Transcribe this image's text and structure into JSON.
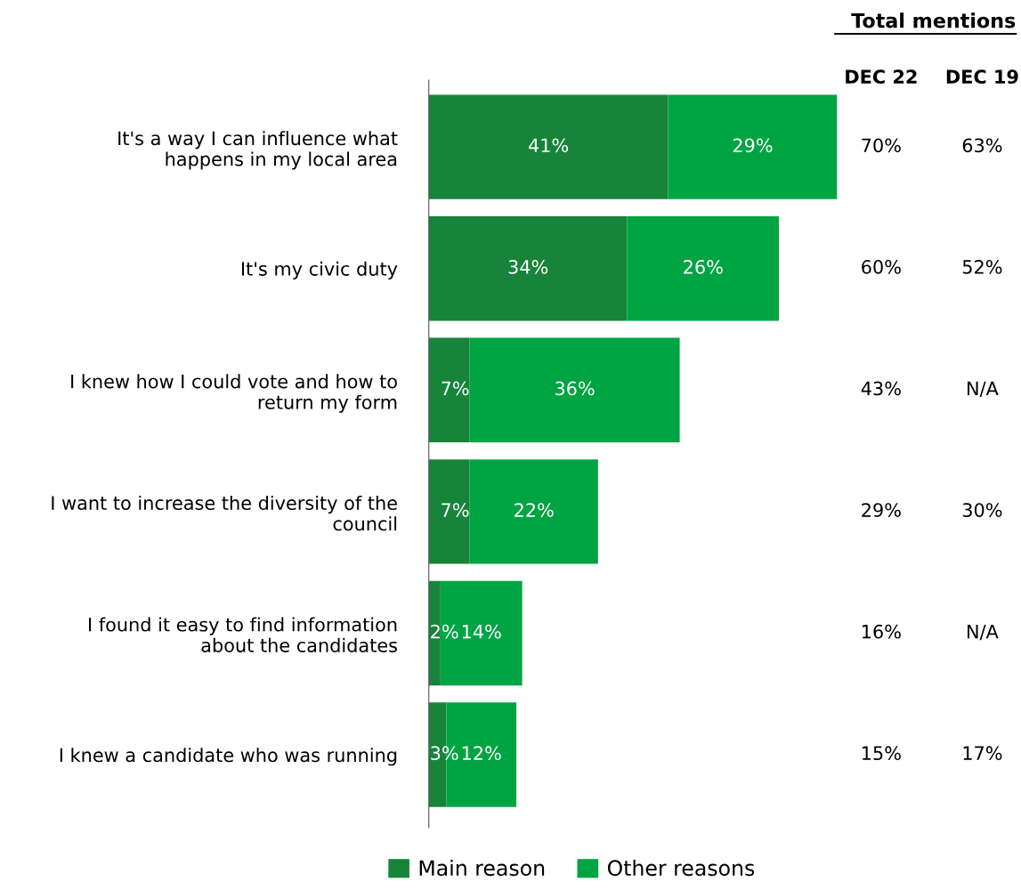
{
  "chart_data": {
    "type": "bar",
    "orientation": "horizontal",
    "stacked": true,
    "categories": [
      "It's a way I can influence what\nhappens in my local area",
      "It's my civic duty",
      "I knew how I could vote and how to\nreturn my form",
      "I want to increase the diversity of the\ncouncil",
      "I found it easy to find information\nabout the candidates",
      "I knew a candidate who was running"
    ],
    "series": [
      {
        "name": "Main reason",
        "color": "#17843a",
        "values": [
          41,
          34,
          7,
          7,
          2,
          3
        ],
        "value_labels": [
          "41%",
          "34%",
          "7%",
          "7%",
          "2%",
          "3%"
        ]
      },
      {
        "name": "Other reasons",
        "color": "#00a443",
        "values": [
          29,
          26,
          36,
          22,
          14,
          12
        ],
        "value_labels": [
          "29%",
          "26%",
          "36%",
          "22%",
          "14%",
          "12%"
        ]
      }
    ],
    "annotations": [
      "Total mentions",
      "DEC 22",
      "DEC 19",
      "70%",
      "63%",
      "60%",
      "52%",
      "43%",
      "N/A",
      "29%",
      "30%",
      "16%",
      "N/A",
      "15%",
      "17%"
    ],
    "legend": "bottom",
    "grid": false,
    "tick_labels": "y"
  }
}
